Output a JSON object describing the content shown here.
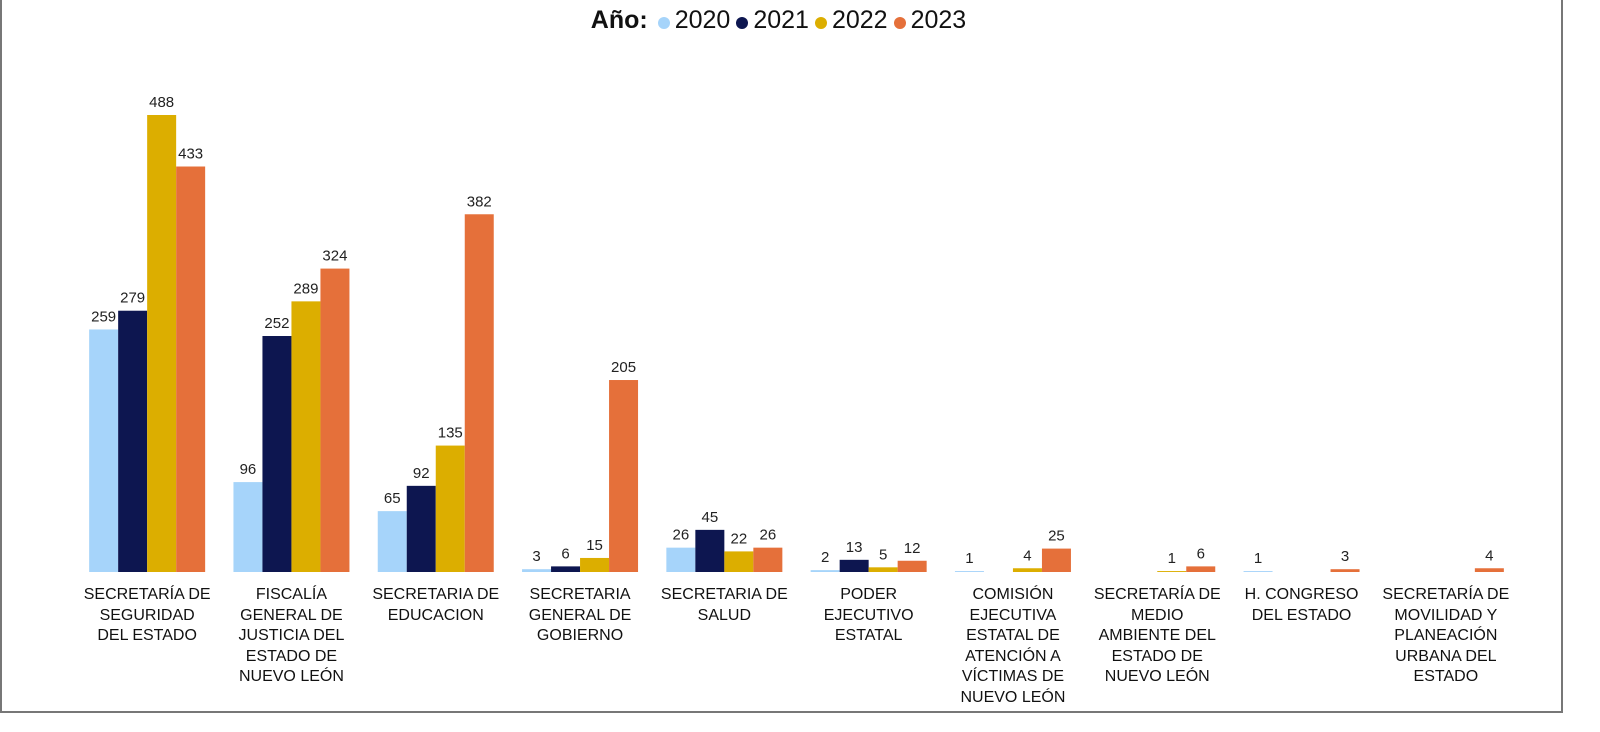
{
  "chart_data": {
    "type": "bar",
    "legend_title": "Año:",
    "categories": [
      "SECRETARÍA DE SEGURIDAD DEL ESTADO",
      "FISCALÍA GENERAL DE JUSTICIA DEL ESTADO DE NUEVO LEÓN",
      "SECRETARIA DE EDUCACION",
      "SECRETARIA GENERAL DE GOBIERNO",
      "SECRETARIA DE SALUD",
      "PODER EJECUTIVO ESTATAL",
      "COMISIÓN EJECUTIVA ESTATAL DE ATENCIÓN A VÍCTIMAS DE NUEVO LEÓN",
      "SECRETARÍA DE MEDIO AMBIENTE DEL ESTADO DE NUEVO LEÓN",
      "H. CONGRESO DEL ESTADO",
      "SECRETARÍA DE MOVILIDAD Y PLANEACIÓN URBANA DEL ESTADO"
    ],
    "series": [
      {
        "name": "2020",
        "color": "#a6d4fa",
        "values": [
          259,
          96,
          65,
          3,
          26,
          2,
          1,
          null,
          1,
          null
        ]
      },
      {
        "name": "2021",
        "color": "#0d1650",
        "values": [
          279,
          252,
          92,
          6,
          45,
          13,
          null,
          null,
          null,
          null
        ]
      },
      {
        "name": "2022",
        "color": "#dcae00",
        "values": [
          488,
          289,
          135,
          15,
          22,
          5,
          4,
          1,
          null,
          null
        ]
      },
      {
        "name": "2023",
        "color": "#e5703a",
        "values": [
          433,
          324,
          382,
          205,
          26,
          12,
          25,
          6,
          3,
          4
        ]
      }
    ]
  }
}
